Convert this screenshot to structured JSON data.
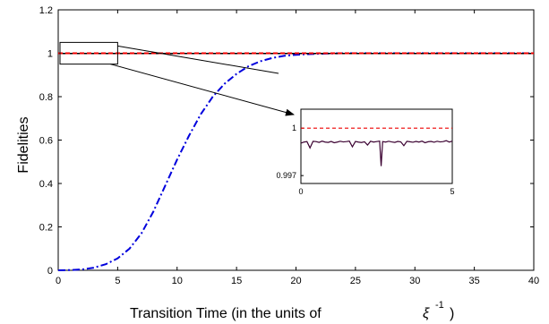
{
  "chart_data": [
    {
      "type": "line",
      "xlabel": "Transition Time (in the units of",
      "xlabel_unit": "ξ",
      "xlabel_unit_exp": "-1",
      "xlabel_close": ")",
      "ylabel": "Fidelities",
      "xlim": [
        0,
        40
      ],
      "ylim": [
        0,
        1.2
      ],
      "x_ticks": [
        "0",
        "5",
        "10",
        "15",
        "20",
        "25",
        "30",
        "35",
        "40"
      ],
      "y_ticks": [
        "0",
        "0.2",
        "0.4",
        "0.6",
        "0.8",
        "1",
        "1.2"
      ],
      "grid": false,
      "series": [
        {
          "style": "dashdot",
          "color": "#0000dd",
          "x": [
            0,
            1,
            2,
            3,
            4,
            5,
            6,
            7,
            8,
            9,
            10,
            11,
            12,
            13,
            14,
            15,
            16,
            17,
            18,
            19,
            20,
            21,
            22,
            23,
            24,
            25,
            30,
            35,
            40
          ],
          "y": [
            0,
            0.001,
            0.004,
            0.012,
            0.028,
            0.055,
            0.1,
            0.17,
            0.27,
            0.39,
            0.51,
            0.62,
            0.72,
            0.8,
            0.86,
            0.905,
            0.94,
            0.963,
            0.978,
            0.988,
            0.993,
            0.996,
            0.998,
            0.999,
            1,
            1,
            1,
            1,
            1
          ]
        },
        {
          "style": "solid",
          "color": "#000000",
          "x": [
            0,
            40
          ],
          "y": [
            0.999,
            0.999
          ]
        },
        {
          "style": "dashed",
          "color": "#ee0000",
          "x": [
            0,
            40
          ],
          "y": [
            1,
            1
          ]
        }
      ],
      "zoom_box": {
        "x": [
          0,
          5
        ],
        "y": [
          0.95,
          1.05
        ]
      }
    },
    {
      "type": "line",
      "xlim": [
        0,
        5
      ],
      "ylim": [
        0.9965,
        1.0012
      ],
      "x_ticks": [
        "0",
        "5"
      ],
      "y_ticks": [
        "1",
        "0.997"
      ],
      "x_tick_values": [
        0,
        5
      ],
      "y_tick_values": [
        1,
        0.997
      ],
      "series": [
        {
          "style": "dashed",
          "color": "#ee0000",
          "x": [
            0,
            5
          ],
          "y": [
            1,
            1
          ]
        },
        {
          "style": "solid",
          "color": "#3a0030",
          "x": [
            0,
            0.1,
            0.2,
            0.3,
            0.4,
            0.5,
            0.6,
            0.7,
            0.8,
            0.9,
            1.0,
            1.1,
            1.2,
            1.3,
            1.4,
            1.5,
            1.6,
            1.7,
            1.8,
            1.9,
            2.0,
            2.1,
            2.2,
            2.3,
            2.4,
            2.5,
            2.6,
            2.65,
            2.7,
            2.8,
            2.9,
            3.0,
            3.1,
            3.2,
            3.3,
            3.4,
            3.5,
            3.6,
            3.7,
            3.8,
            3.9,
            4.0,
            4.1,
            4.2,
            4.3,
            4.4,
            4.5,
            4.6,
            4.7,
            4.8,
            4.9,
            5.0
          ],
          "y": [
            0.99905,
            0.99912,
            0.99915,
            0.99875,
            0.99917,
            0.99915,
            0.9991,
            0.99918,
            0.99912,
            0.9991,
            0.99916,
            0.99908,
            0.99912,
            0.99917,
            0.99913,
            0.99915,
            0.99918,
            0.99882,
            0.99916,
            0.99912,
            0.99909,
            0.99914,
            0.99893,
            0.99917,
            0.99912,
            0.99915,
            0.99918,
            0.9976,
            0.99915,
            0.99912,
            0.99917,
            0.99913,
            0.9991,
            0.99916,
            0.99913,
            0.99889,
            0.99917,
            0.99914,
            0.99911,
            0.99916,
            0.99912,
            0.99918,
            0.99908,
            0.99914,
            0.99916,
            0.99911,
            0.99917,
            0.99913,
            0.99915,
            0.99921,
            0.99912,
            0.99918
          ]
        }
      ]
    }
  ]
}
